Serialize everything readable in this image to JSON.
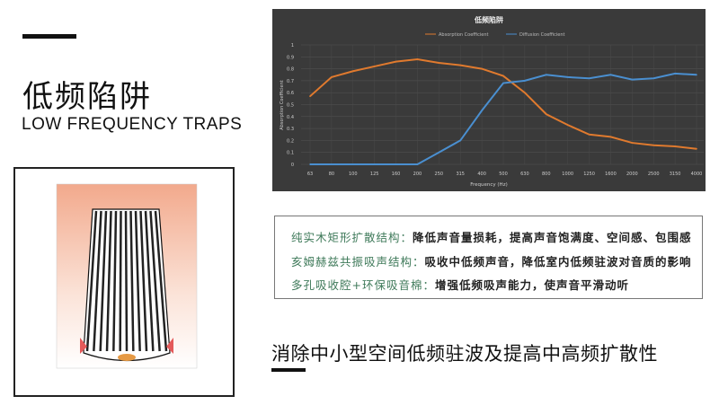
{
  "left": {
    "title_cn": "低频陷阱",
    "title_en": "LOW FREQUENCY TRAPS"
  },
  "chart_data": {
    "type": "line",
    "title": "低频陷阱",
    "xlabel": "Frequency (Hz)",
    "ylabel": "Absorption Coefficient",
    "legend_position": "top",
    "grid": true,
    "ylim": [
      0,
      1
    ],
    "yticks": [
      "0",
      "0.1",
      "0.2",
      "0.3",
      "0.4",
      "0.5",
      "0.6",
      "0.7",
      "0.8",
      "0.9",
      "1"
    ],
    "categories": [
      "63",
      "80",
      "100",
      "125",
      "160",
      "200",
      "250",
      "315",
      "400",
      "500",
      "630",
      "800",
      "1000",
      "1250",
      "1600",
      "2000",
      "2500",
      "3150",
      "4000"
    ],
    "series": [
      {
        "name": "Absorption Coefficient",
        "color": "#e07a2e",
        "values": [
          0.57,
          0.73,
          0.78,
          0.82,
          0.86,
          0.88,
          0.85,
          0.83,
          0.8,
          0.74,
          0.6,
          0.42,
          0.33,
          0.25,
          0.23,
          0.18,
          0.16,
          0.15,
          0.13
        ]
      },
      {
        "name": "Diffusion Coefficient",
        "color": "#4a8fd0",
        "values": [
          0,
          0,
          0,
          0,
          0,
          0,
          0.1,
          0.2,
          0.45,
          0.68,
          0.7,
          0.75,
          0.73,
          0.72,
          0.75,
          0.71,
          0.72,
          0.76,
          0.75
        ]
      }
    ]
  },
  "features": [
    {
      "key": "纯实木矩形扩散结构：",
      "value": "降低声音量损耗，提高声音饱满度、空间感、包围感"
    },
    {
      "key": "亥姆赫兹共振吸声结构：",
      "value": "吸收中低频声音，降低室内低频驻波对音质的影响"
    },
    {
      "key": "多孔吸收腔+环保吸音棉：",
      "value": "增强低频吸声能力，使声音平滑动听"
    }
  ],
  "bottom_text": "消除中小型空间低频驻波及提高中高频扩散性"
}
